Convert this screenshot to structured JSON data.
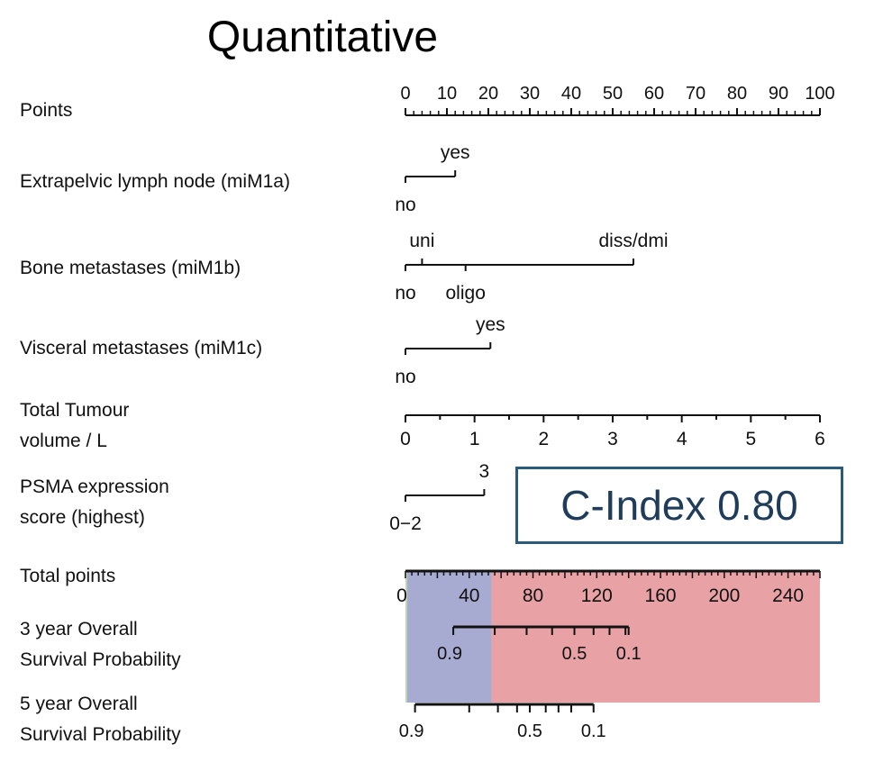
{
  "chart_data": {
    "type": "nomogram",
    "title": "Quantitative",
    "c_index_label": "C-Index 0.80",
    "points_axis": {
      "label": "Points",
      "range": [
        0,
        100
      ],
      "ticks": [
        "0",
        "10",
        "20",
        "30",
        "40",
        "50",
        "60",
        "70",
        "80",
        "90",
        "100"
      ],
      "minor_step": 2
    },
    "predictors": [
      {
        "label": "Extrapelvic lymph node (miM1a)",
        "categories": [
          {
            "name": "no",
            "points": 0,
            "side": "below"
          },
          {
            "name": "yes",
            "points": 12,
            "side": "above"
          }
        ]
      },
      {
        "label": "Bone metastases (miM1b)",
        "categories": [
          {
            "name": "no",
            "points": 0,
            "side": "below"
          },
          {
            "name": "uni",
            "points": 4,
            "side": "above"
          },
          {
            "name": "oligo",
            "points": 14.5,
            "side": "below"
          },
          {
            "name": "diss/dmi",
            "points": 55,
            "side": "above"
          }
        ]
      },
      {
        "label": "Visceral metastases (miM1c)",
        "categories": [
          {
            "name": "no",
            "points": 0,
            "side": "below"
          },
          {
            "name": "yes",
            "points": 20.5,
            "side": "above"
          }
        ]
      },
      {
        "label_lines": [
          "Total Tumour",
          "volume / L"
        ],
        "continuous": true,
        "range": [
          0,
          6
        ],
        "ticks": [
          "0",
          "1",
          "2",
          "3",
          "4",
          "5",
          "6"
        ],
        "minor_step": 0.5
      },
      {
        "label_lines": [
          "PSMA expression",
          "score (highest)"
        ],
        "categories": [
          {
            "name": "0−2",
            "points": 0,
            "side": "below"
          },
          {
            "name": "3",
            "points": 19,
            "side": "above"
          }
        ]
      }
    ],
    "total_points_axis": {
      "label": "Total points",
      "range": [
        0,
        260
      ],
      "ticks": [
        "0",
        "40",
        "80",
        "120",
        "160",
        "200",
        "240"
      ],
      "minor_step": 4
    },
    "risk_bands": [
      {
        "from": 0,
        "to": 1,
        "color": "#b9dca8"
      },
      {
        "from": 1,
        "to": 54,
        "color": "#a8abd1"
      },
      {
        "from": 54,
        "to": 260,
        "color": "#e8a1a4"
      }
    ],
    "survival_scales": [
      {
        "label_lines": [
          "3 year Overall",
          "Survival Probability"
        ],
        "probability_positions": [
          {
            "p": 0.9,
            "total_points": 30
          },
          {
            "p": 0.8,
            "total_points": 56
          },
          {
            "p": 0.7,
            "total_points": 76
          },
          {
            "p": 0.6,
            "total_points": 92
          },
          {
            "p": 0.5,
            "total_points": 106
          },
          {
            "p": 0.4,
            "total_points": 118
          },
          {
            "p": 0.3,
            "total_points": 128
          },
          {
            "p": 0.2,
            "total_points": 138
          },
          {
            "p": 0.1,
            "total_points": 140
          }
        ],
        "tick_labels": [
          "0.9",
          "0.5",
          "0.1"
        ]
      },
      {
        "label_lines": [
          "5 year Overall",
          "Survival Probability"
        ],
        "probability_positions": [
          {
            "p": 0.9,
            "total_points": 6
          },
          {
            "p": 0.8,
            "total_points": 40
          },
          {
            "p": 0.7,
            "total_points": 58
          },
          {
            "p": 0.6,
            "total_points": 70
          },
          {
            "p": 0.5,
            "total_points": 78
          },
          {
            "p": 0.4,
            "total_points": 88
          },
          {
            "p": 0.3,
            "total_points": 96
          },
          {
            "p": 0.2,
            "total_points": 104
          },
          {
            "p": 0.1,
            "total_points": 118
          }
        ],
        "tick_labels": [
          "0.9",
          "0.5",
          "0.1"
        ]
      }
    ]
  }
}
